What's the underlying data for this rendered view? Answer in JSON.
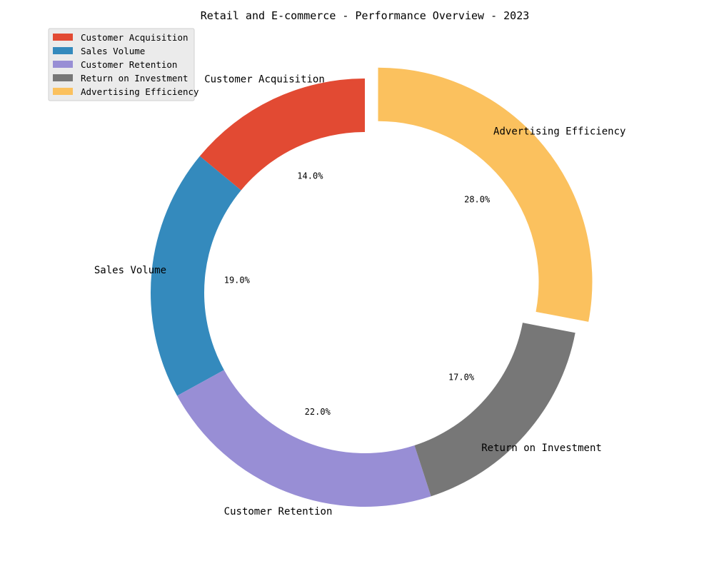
{
  "chart_data": {
    "type": "pie",
    "variant": "donut",
    "title": "Retail and E-commerce - Performance Overview - 2023",
    "categories": [
      "Customer Acquisition",
      "Sales Volume",
      "Customer Retention",
      "Return on Investment",
      "Advertising Efficiency"
    ],
    "values": [
      14,
      19,
      22,
      17,
      28
    ],
    "percent_labels": [
      "14.0%",
      "19.0%",
      "22.0%",
      "17.0%",
      "28.0%"
    ],
    "colors": [
      "#e24a33",
      "#348abd",
      "#988ed5",
      "#777777",
      "#fbc15e"
    ],
    "exploded": [
      false,
      false,
      false,
      false,
      true
    ],
    "start_angle_deg": 90,
    "direction": "counterclockwise",
    "legend": {
      "placement": "top-left",
      "entries": [
        "Customer Acquisition",
        "Sales Volume",
        "Customer Retention",
        "Return on Investment",
        "Advertising Efficiency"
      ]
    }
  }
}
